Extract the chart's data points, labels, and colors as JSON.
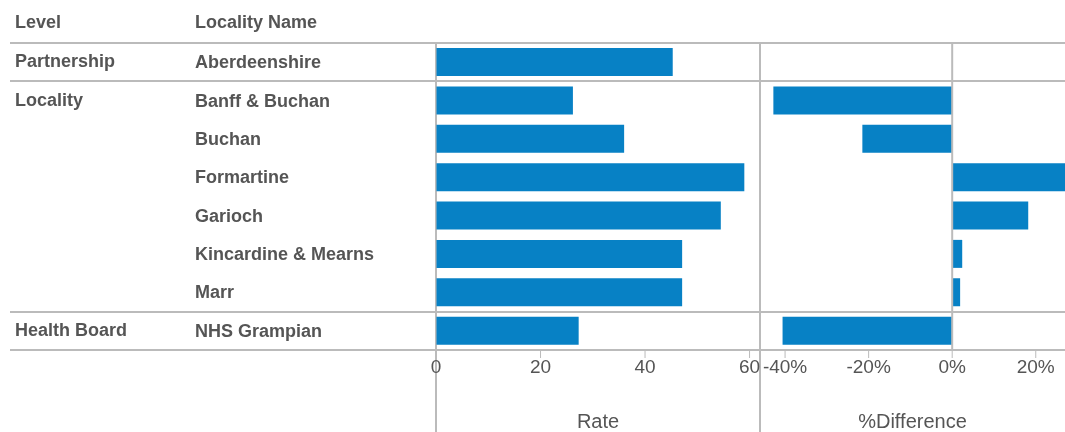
{
  "chart_data": [
    {
      "type": "bar",
      "orientation": "horizontal",
      "xlabel": "Rate",
      "categories": [
        "Aberdeenshire",
        "Banff & Buchan",
        "Buchan",
        "Formartine",
        "Garioch",
        "Kincardine & Mearns",
        "Marr",
        "NHS Grampian"
      ],
      "values": [
        45.3,
        26.2,
        36.0,
        59.0,
        54.5,
        47.1,
        47.1,
        27.3
      ],
      "color": "#0781c5",
      "xlim": [
        0,
        62
      ],
      "xticks": [
        0,
        20,
        40,
        60
      ],
      "annotations": [
        "Level",
        "Locality Name",
        "Partnership",
        "Locality",
        "Health Board"
      ]
    },
    {
      "type": "bar",
      "orientation": "horizontal",
      "xlabel": "%Difference",
      "tick_labels": "x",
      "values": [
        null,
        -42.8,
        -21.5,
        27,
        18.2,
        2.4,
        1.9,
        -40.6
      ],
      "color": "#0781c5",
      "xlim": [
        -46,
        27
      ],
      "xticks": [
        {
          "value": -40,
          "label": "-40%"
        },
        {
          "value": -20,
          "label": "-20%"
        },
        {
          "value": 0,
          "label": "0%"
        },
        {
          "value": 20,
          "label": "20%"
        }
      ],
      "ref_lines": [
        {
          "axis": "x",
          "value": 0,
          "color": "#bbbbbb"
        }
      ]
    }
  ]
}
